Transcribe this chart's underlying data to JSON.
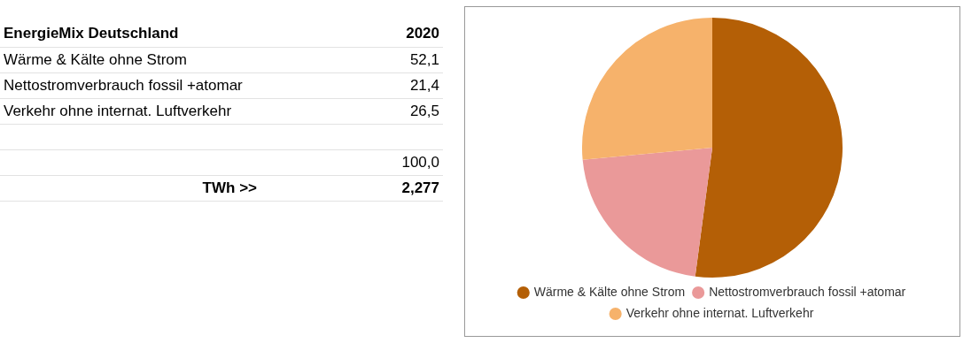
{
  "chart_data": {
    "type": "pie",
    "title": "EnergieMix Deutschland",
    "categories": [
      "Wärme & Kälte ohne Strom",
      "Nettostromverbrauch fossil +atomar",
      "Verkehr ohne internat. Luftverkehr"
    ],
    "values": [
      52.1,
      21.4,
      26.5
    ],
    "colors": [
      "#b45f06",
      "#ea9999",
      "#f6b26b"
    ],
    "legend": "bottom",
    "annotations": [
      "2020",
      "52,1",
      "21,4",
      "26,5",
      "100,0",
      "TWh >>",
      "2,277"
    ]
  }
}
